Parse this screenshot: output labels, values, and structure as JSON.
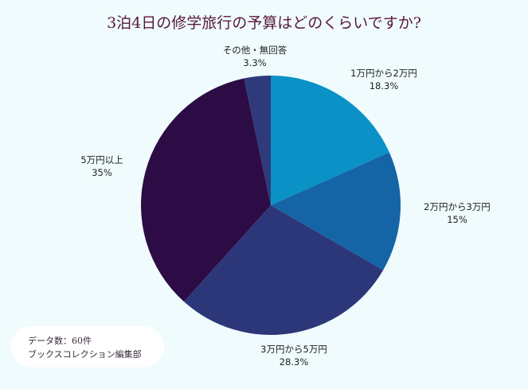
{
  "chart_data": {
    "type": "pie",
    "title": "3泊4日の修学旅行の予算はどのくらいですか?",
    "start": "top",
    "direction": "clockwise",
    "slices": [
      {
        "label": "1万円から2万円",
        "value": 18.3,
        "display": "18.3%",
        "color": "#0a91c6"
      },
      {
        "label": "2万円から3万円",
        "value": 15,
        "display": "15%",
        "color": "#1565a6"
      },
      {
        "label": "3万円から5万円",
        "value": 28.3,
        "display": "28.3%",
        "color": "#2c3779"
      },
      {
        "label": "5万円以上",
        "value": 35,
        "display": "35%",
        "color": "#2d0b45"
      },
      {
        "label": "その他・無回答",
        "value": 3.3,
        "display": "3.3%",
        "color": "#2e3a7a"
      }
    ]
  },
  "note": {
    "line1": "データ数：60件",
    "line2": "ブックスコレクション編集部"
  }
}
